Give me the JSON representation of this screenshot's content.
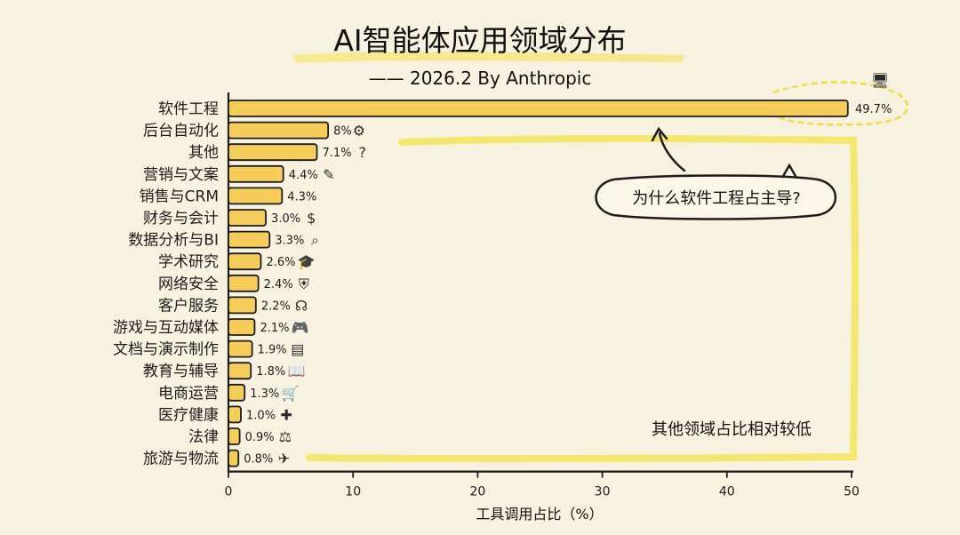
{
  "chart_data": {
    "type": "bar",
    "orientation": "horizontal",
    "title": "AI智能体应用领域分布",
    "subtitle": "—— 2026.2 By Anthropic",
    "xlabel": "工具调用占比（%）",
    "ylabel": "",
    "xlim": [
      0,
      50
    ],
    "xticks": [
      "0",
      "10",
      "20",
      "30",
      "40",
      "50"
    ],
    "grid": false,
    "bar_color": "#f6cd5a",
    "accent_color": "#f2e46a",
    "categories": [
      "软件工程",
      "后台自动化",
      "其他",
      "营销与文案",
      "销售与CRM",
      "财务与会计",
      "数据分析与BI",
      "学术研究",
      "网络安全",
      "客户服务",
      "游戏与互动媒体",
      "文档与演示制作",
      "教育与辅导",
      "电商运营",
      "医疗健康",
      "法律",
      "旅游与物流"
    ],
    "values": [
      49.7,
      8,
      7.1,
      4.4,
      4.3,
      3.0,
      3.3,
      2.6,
      2.4,
      2.2,
      2.1,
      1.9,
      1.8,
      1.3,
      1.0,
      0.9,
      0.8
    ],
    "value_labels": [
      "49.7%",
      "8%",
      "7.1%",
      "4.4%",
      "4.3%",
      "3.0%",
      "3.3%",
      "2.6%",
      "2.4%",
      "2.2%",
      "2.1%",
      "1.9%",
      "1.8%",
      "1.3%",
      "1.0%",
      "0.9%",
      "0.8%"
    ],
    "icons": [
      "computer-icon",
      "gear-icon",
      "question-icon",
      "pen-icon",
      "",
      "money-bag-icon",
      "magnifier-icon",
      "graduation-cap-icon",
      "shield-icon",
      "headset-icon",
      "gamepad-icon",
      "document-icon",
      "book-icon",
      "cart-icon",
      "medical-cross-icon",
      "gavel-icon",
      "airplane-icon"
    ],
    "annotations": [
      "为什么软件工程占主导?",
      "其他领域占比相对较低"
    ]
  }
}
